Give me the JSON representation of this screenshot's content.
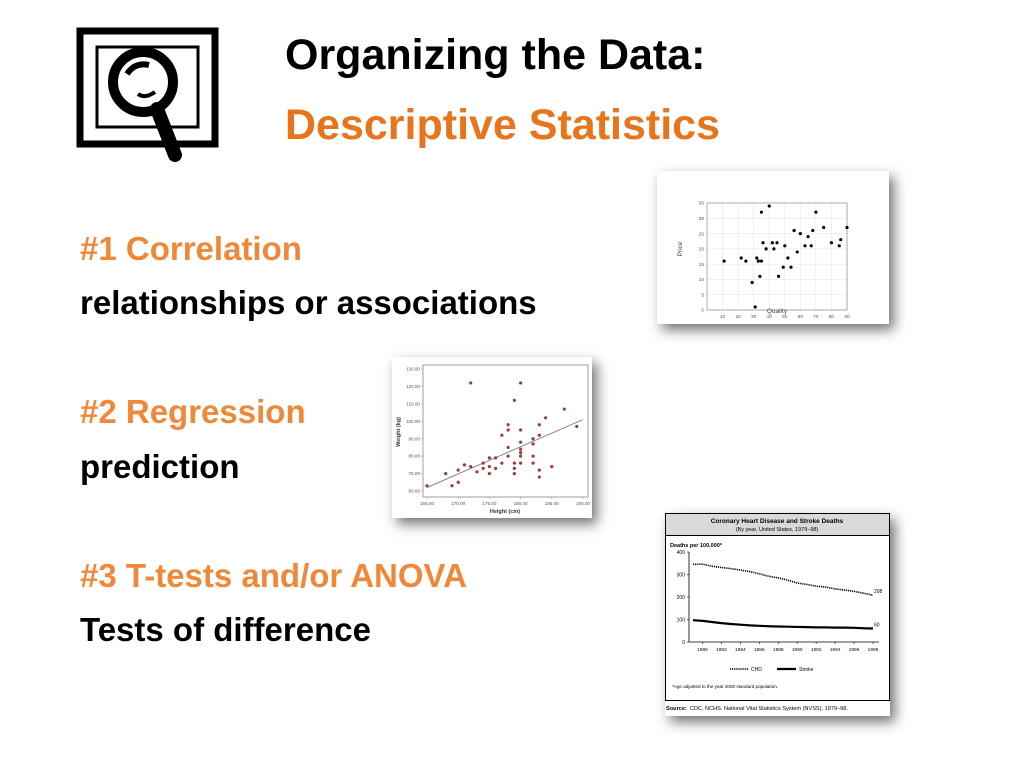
{
  "slide": {
    "title": "Organizing the Data:",
    "subtitle": "Descriptive Statistics",
    "icon": "magnifier-icon",
    "accent_color": "#e8741c",
    "item_color": "#f0883a",
    "items": [
      {
        "heading": "#1 Correlation",
        "desc": "relationships or associations"
      },
      {
        "heading": "#2  Regression",
        "desc": "prediction"
      },
      {
        "heading": "#3  T-tests and/or ANOVA",
        "desc": "Tests of difference"
      }
    ]
  },
  "chart_data": [
    {
      "type": "scatter",
      "xlabel": "Quality",
      "ylabel": "Price",
      "xlim": [
        0,
        90
      ],
      "ylim": [
        0,
        35
      ],
      "xticks": [
        "10",
        "20",
        "30",
        "40",
        "50",
        "60",
        "70",
        "80",
        "90"
      ],
      "yticks": [
        "0",
        "5",
        "10",
        "15",
        "20",
        "25",
        "30",
        "35"
      ],
      "x": [
        11,
        22,
        25,
        29,
        31,
        32,
        33,
        34,
        35,
        35,
        36,
        38,
        40,
        42,
        43,
        45,
        46,
        49,
        50,
        52,
        54,
        56,
        58,
        60,
        63,
        65,
        67,
        68,
        70,
        75,
        80,
        85,
        86,
        90
      ],
      "y": [
        16,
        17,
        16,
        9,
        1,
        17,
        16,
        11,
        32,
        16,
        22,
        20,
        34,
        22,
        20,
        22,
        11,
        14,
        21,
        17,
        14,
        26,
        19,
        25,
        21,
        24,
        21,
        26,
        32,
        27,
        22,
        21,
        23,
        27
      ]
    },
    {
      "type": "scatter",
      "xlabel": "Height (cm)",
      "ylabel": "Weight (kg)",
      "xlim": [
        165,
        190
      ],
      "ylim": [
        60,
        130
      ],
      "xticks": [
        "165.00",
        "170.00",
        "175.00",
        "180.00",
        "185.00",
        "190.00"
      ],
      "yticks": [
        "60.00",
        "70.00",
        "80.00",
        "90.00",
        "100.00",
        "110.00",
        "120.00",
        "130.00"
      ],
      "trendline": [
        [
          165,
          62
        ],
        [
          190,
          101
        ]
      ],
      "x": [
        165,
        168,
        169,
        170,
        170,
        171,
        172,
        172,
        173,
        174,
        174,
        175,
        175,
        175,
        176,
        176,
        177,
        177,
        178,
        178,
        178,
        178,
        179,
        179,
        179,
        179,
        180,
        180,
        180,
        180,
        180,
        180,
        180,
        182,
        182,
        182,
        182,
        183,
        183,
        183,
        183,
        184,
        185,
        187,
        189
      ],
      "y": [
        63,
        70,
        63,
        72,
        65,
        75,
        122,
        74,
        71,
        73,
        76,
        79,
        74,
        70,
        79,
        73,
        92,
        76,
        80,
        98,
        95,
        85,
        73,
        70,
        76,
        112,
        95,
        88,
        84,
        82,
        80,
        122,
        76,
        90,
        87,
        80,
        76,
        98,
        92,
        72,
        68,
        102,
        74,
        107,
        97
      ]
    },
    {
      "type": "line",
      "title": "Coronary Heart Disease and Stroke Deaths",
      "subtitle": "(By year, United States, 1979–98)",
      "ylabel": "Deaths per 100,000*",
      "xlim": [
        1979,
        1998
      ],
      "ylim": [
        0,
        400
      ],
      "xticks": [
        "1980",
        "1982",
        "1984",
        "1986",
        "1988",
        "1990",
        "1992",
        "1994",
        "1996",
        "1998"
      ],
      "yticks": [
        "0",
        "100",
        "200",
        "300",
        "400"
      ],
      "x": [
        1979,
        1980,
        1981,
        1982,
        1983,
        1984,
        1985,
        1986,
        1987,
        1988,
        1989,
        1990,
        1991,
        1992,
        1993,
        1994,
        1995,
        1996,
        1997,
        1998
      ],
      "series": [
        {
          "name": "CHD",
          "end_label": "208",
          "values": [
            345,
            346,
            337,
            331,
            326,
            320,
            313,
            303,
            292,
            285,
            275,
            262,
            256,
            248,
            244,
            236,
            231,
            225,
            217,
            208
          ]
        },
        {
          "name": "Stroke",
          "end_label": "60",
          "values": [
            97,
            94,
            89,
            84,
            80,
            77,
            74,
            72,
            70,
            69,
            68,
            67,
            66,
            65,
            65,
            64,
            64,
            63,
            61,
            60
          ]
        }
      ],
      "footnote": "*Age adjusted to the year 2000 standard population.",
      "source_label": "Source:",
      "source_text": "CDC, NCHS. National Vital Statistics System (NVSS), 1979–98."
    }
  ]
}
